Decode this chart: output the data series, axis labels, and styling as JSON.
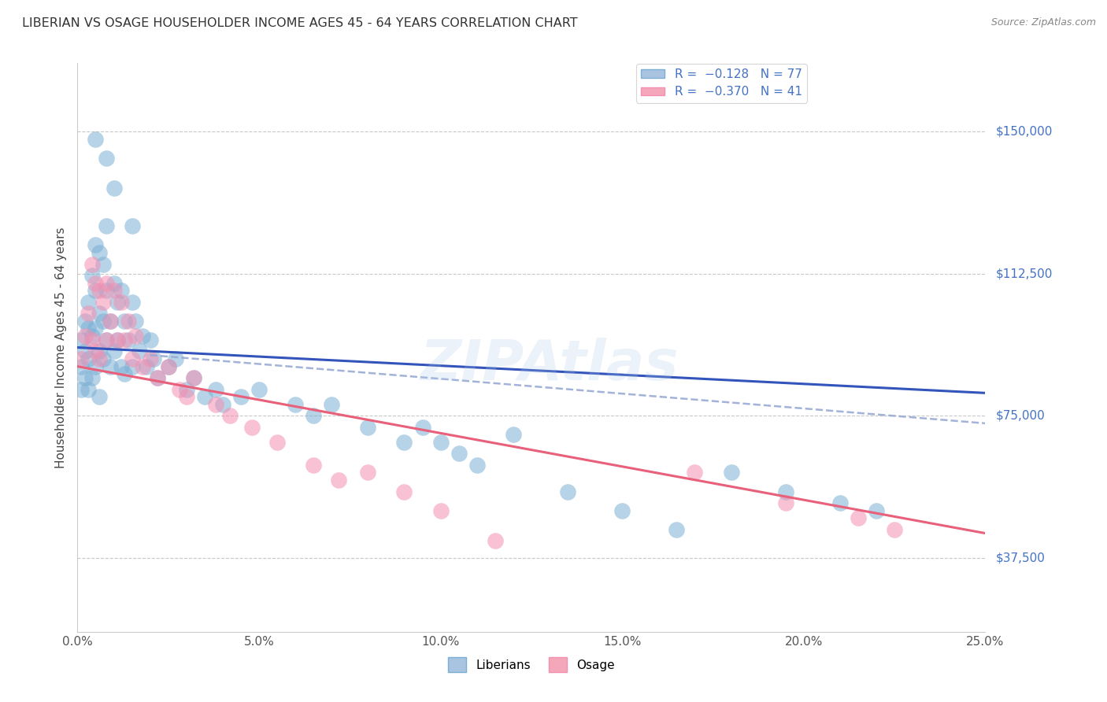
{
  "title": "LIBERIAN VS OSAGE HOUSEHOLDER INCOME AGES 45 - 64 YEARS CORRELATION CHART",
  "source": "Source: ZipAtlas.com",
  "ylabel": "Householder Income Ages 45 - 64 years",
  "xlabel_ticks": [
    "0.0%",
    "5.0%",
    "10.0%",
    "15.0%",
    "20.0%",
    "25.0%"
  ],
  "xlabel_vals": [
    0.0,
    0.05,
    0.1,
    0.15,
    0.2,
    0.25
  ],
  "ytick_labels": [
    "$37,500",
    "$75,000",
    "$112,500",
    "$150,000"
  ],
  "ytick_vals": [
    37500,
    75000,
    112500,
    150000
  ],
  "xlim": [
    0.0,
    0.25
  ],
  "ylim": [
    18000,
    168000
  ],
  "liberian_color": "#7bafd4",
  "osage_color": "#f48fb1",
  "blue_line_color": "#3355bb",
  "pink_line_color": "#e8607a",
  "dashed_line_color": "#99aad4",
  "watermark": "ZIPAtlas",
  "background_color": "#ffffff",
  "grid_color": "#c8c8c8",
  "blue_line_x0": 0.0,
  "blue_line_y0": 93000,
  "blue_line_x1": 0.25,
  "blue_line_y1": 81000,
  "pink_line_x0": 0.0,
  "pink_line_y0": 88000,
  "pink_line_x1": 0.25,
  "pink_line_y1": 44000,
  "dash_line_x0": 0.02,
  "dash_line_y0": 91000,
  "dash_line_x1": 0.25,
  "dash_line_y1": 73000,
  "lib_x": [
    0.001,
    0.001,
    0.001,
    0.002,
    0.002,
    0.002,
    0.003,
    0.003,
    0.003,
    0.003,
    0.004,
    0.004,
    0.004,
    0.005,
    0.005,
    0.005,
    0.005,
    0.006,
    0.006,
    0.006,
    0.006,
    0.007,
    0.007,
    0.007,
    0.008,
    0.008,
    0.008,
    0.009,
    0.009,
    0.01,
    0.01,
    0.011,
    0.011,
    0.012,
    0.012,
    0.013,
    0.013,
    0.014,
    0.015,
    0.015,
    0.016,
    0.017,
    0.018,
    0.019,
    0.02,
    0.021,
    0.022,
    0.025,
    0.027,
    0.03,
    0.032,
    0.035,
    0.038,
    0.04,
    0.045,
    0.05,
    0.06,
    0.065,
    0.07,
    0.08,
    0.09,
    0.095,
    0.1,
    0.105,
    0.11,
    0.12,
    0.135,
    0.15,
    0.165,
    0.18,
    0.195,
    0.21,
    0.22,
    0.005,
    0.008,
    0.01,
    0.015
  ],
  "lib_y": [
    95000,
    88000,
    82000,
    100000,
    92000,
    85000,
    105000,
    98000,
    90000,
    82000,
    112000,
    96000,
    85000,
    120000,
    108000,
    98000,
    88000,
    118000,
    102000,
    92000,
    80000,
    115000,
    100000,
    90000,
    125000,
    108000,
    95000,
    100000,
    88000,
    110000,
    92000,
    105000,
    95000,
    108000,
    88000,
    100000,
    86000,
    95000,
    105000,
    88000,
    100000,
    92000,
    96000,
    88000,
    95000,
    90000,
    85000,
    88000,
    90000,
    82000,
    85000,
    80000,
    82000,
    78000,
    80000,
    82000,
    78000,
    75000,
    78000,
    72000,
    68000,
    72000,
    68000,
    65000,
    62000,
    70000,
    55000,
    50000,
    45000,
    60000,
    55000,
    52000,
    50000,
    148000,
    143000,
    135000,
    125000
  ],
  "osage_x": [
    0.001,
    0.002,
    0.003,
    0.004,
    0.004,
    0.005,
    0.005,
    0.006,
    0.006,
    0.007,
    0.008,
    0.008,
    0.009,
    0.01,
    0.011,
    0.012,
    0.013,
    0.014,
    0.015,
    0.016,
    0.018,
    0.02,
    0.022,
    0.025,
    0.028,
    0.03,
    0.032,
    0.038,
    0.042,
    0.048,
    0.055,
    0.065,
    0.072,
    0.08,
    0.09,
    0.1,
    0.115,
    0.17,
    0.195,
    0.215,
    0.225
  ],
  "osage_y": [
    90000,
    96000,
    102000,
    115000,
    95000,
    110000,
    92000,
    108000,
    90000,
    105000,
    110000,
    95000,
    100000,
    108000,
    95000,
    105000,
    95000,
    100000,
    90000,
    96000,
    88000,
    90000,
    85000,
    88000,
    82000,
    80000,
    85000,
    78000,
    75000,
    72000,
    68000,
    62000,
    58000,
    60000,
    55000,
    50000,
    42000,
    60000,
    52000,
    48000,
    45000
  ]
}
